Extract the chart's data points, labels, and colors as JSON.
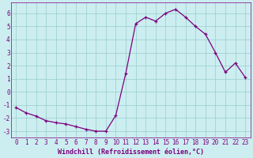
{
  "x": [
    0,
    1,
    2,
    3,
    4,
    5,
    6,
    7,
    8,
    9,
    10,
    11,
    12,
    13,
    14,
    15,
    16,
    17,
    18,
    19,
    20,
    21,
    22,
    23
  ],
  "y": [
    -1.2,
    -1.6,
    -1.85,
    -2.2,
    -2.35,
    -2.45,
    -2.65,
    -2.85,
    -3.0,
    -3.0,
    -1.8,
    1.4,
    5.2,
    5.7,
    5.4,
    6.0,
    6.3,
    5.7,
    5.0,
    4.4,
    3.0,
    1.5,
    2.2,
    1.1
  ],
  "line_color": "#7B0080",
  "marker_color": "#7B0080",
  "bg_color": "#cceef0",
  "grid_color": "#99cccc",
  "xlabel": "Windchill (Refroidissement éolien,°C)",
  "xlabel_color": "#7B0080",
  "tick_color": "#7B0080",
  "spine_color": "#7B0080",
  "xlim": [
    -0.5,
    23.5
  ],
  "ylim": [
    -3.5,
    6.8
  ],
  "yticks": [
    -3,
    -2,
    -1,
    0,
    1,
    2,
    3,
    4,
    5,
    6
  ],
  "xticks": [
    0,
    1,
    2,
    3,
    4,
    5,
    6,
    7,
    8,
    9,
    10,
    11,
    12,
    13,
    14,
    15,
    16,
    17,
    18,
    19,
    20,
    21,
    22,
    23
  ],
  "figsize": [
    3.2,
    2.0
  ],
  "dpi": 100,
  "tick_fontsize": 5.5,
  "xlabel_fontsize": 6.0,
  "linewidth": 0.9,
  "markersize": 3.5
}
